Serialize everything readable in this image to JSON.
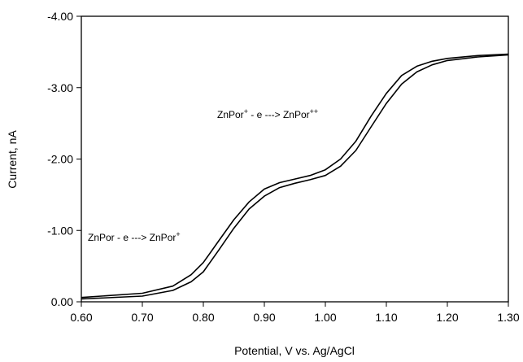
{
  "chart_data": {
    "type": "line",
    "x_label": "Potential, V  vs. Ag/AgCl",
    "y_label": "Current, nA",
    "x": [
      0.6,
      0.7,
      0.75,
      0.78,
      0.8,
      0.825,
      0.85,
      0.875,
      0.9,
      0.925,
      0.95,
      0.975,
      1.0,
      1.025,
      1.05,
      1.075,
      1.1,
      1.125,
      1.15,
      1.175,
      1.2,
      1.25,
      1.3
    ],
    "series": [
      {
        "color": "#000000",
        "values": [
          -0.06,
          -0.12,
          -0.22,
          -0.38,
          -0.55,
          -0.85,
          -1.15,
          -1.4,
          -1.58,
          -1.67,
          -1.72,
          -1.77,
          -1.85,
          -2.0,
          -2.25,
          -2.6,
          -2.92,
          -3.17,
          -3.3,
          -3.37,
          -3.41,
          -3.45,
          -3.47
        ]
      },
      {
        "color": "#000000",
        "values": [
          -0.04,
          -0.08,
          -0.16,
          -0.28,
          -0.42,
          -0.72,
          -1.03,
          -1.3,
          -1.48,
          -1.6,
          -1.66,
          -1.71,
          -1.77,
          -1.9,
          -2.12,
          -2.45,
          -2.78,
          -3.05,
          -3.22,
          -3.32,
          -3.38,
          -3.43,
          -3.46
        ]
      }
    ],
    "xlim": [
      0.6,
      1.3
    ],
    "ylim": [
      0.0,
      -4.0
    ],
    "xticks": [
      {
        "value": 0.6,
        "label": "0.60"
      },
      {
        "value": 0.7,
        "label": "0.70"
      },
      {
        "value": 0.8,
        "label": "0.80"
      },
      {
        "value": 0.9,
        "label": "0.90"
      },
      {
        "value": 1.0,
        "label": "1.00"
      },
      {
        "value": 1.1,
        "label": "1.10"
      },
      {
        "value": 1.2,
        "label": "1.20"
      },
      {
        "value": 1.3,
        "label": "1.30"
      }
    ],
    "yticks": [
      {
        "value": 0,
        "label": "0.00"
      },
      {
        "value": -1,
        "label": "-1.00"
      },
      {
        "value": -2,
        "label": "-2.00"
      },
      {
        "value": -3,
        "label": "-3.00"
      },
      {
        "value": -4,
        "label": "-4.00"
      }
    ],
    "annotations": [
      {
        "parts": [
          "ZnPor - e ---> ZnPor",
          "+"
        ]
      },
      {
        "parts": [
          "ZnPor",
          "+",
          " - e ---> ZnPor",
          "++"
        ]
      }
    ]
  }
}
